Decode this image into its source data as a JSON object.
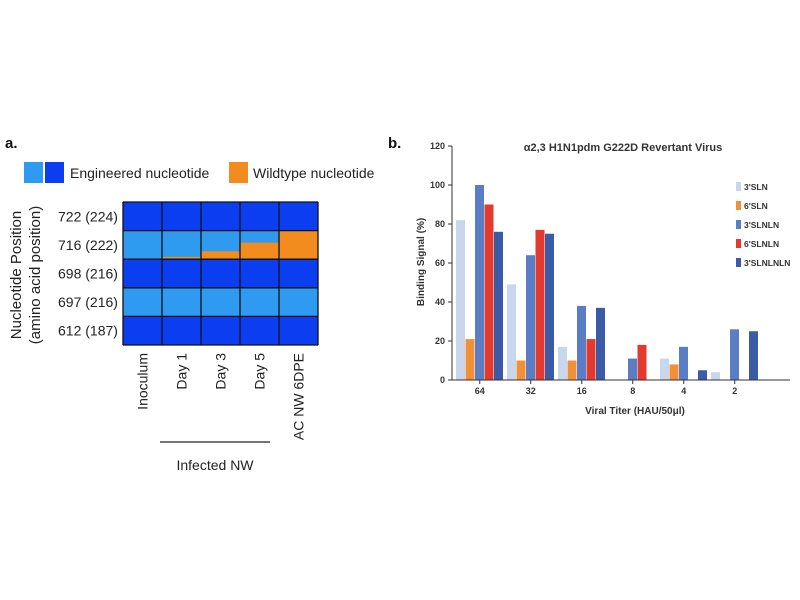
{
  "panel_a": {
    "label": "a.",
    "legend": {
      "engineered_label": "Engineered nucleotide",
      "wildtype_label": "Wildtype nucleotide"
    },
    "y_title_line1": "Nucleotide Position",
    "y_title_line2": "(amino acid position)",
    "group_label": "Infected NW"
  },
  "panel_b": {
    "label": "b."
  },
  "colors": {
    "engineered_dark": "#0a3ef0",
    "engineered_light": "#2e9af0",
    "wildtype": "#f28c1e",
    "s1": "#c9d7ec",
    "s2": "#f0913a",
    "s3": "#5a7ec6",
    "s4": "#e23a2e",
    "s5": "#3c5ba6"
  },
  "chart_data": [
    {
      "type": "heatmap",
      "title": "",
      "rows": [
        "722 (224)",
        "716 (222)",
        "698 (216)",
        "697 (216)",
        "612 (187)"
      ],
      "columns": [
        "Inoculum",
        "Day 1",
        "Day 3",
        "Day 5",
        "AC NW 6DPE"
      ],
      "ylabel": "Nucleotide Position (amino acid position)",
      "column_group": {
        "label": "Infected NW",
        "columns": [
          "Day 1",
          "Day 3",
          "Day 5"
        ]
      },
      "legend": [
        "Engineered nucleotide",
        "Wildtype nucleotide"
      ],
      "wildtype_fraction": [
        [
          0,
          0,
          0,
          0,
          0
        ],
        [
          0,
          0.08,
          0.28,
          0.58,
          1.0
        ],
        [
          0,
          0,
          0,
          0,
          0
        ],
        [
          0,
          0,
          0,
          0,
          0
        ],
        [
          0,
          0,
          0,
          0,
          0
        ]
      ]
    },
    {
      "type": "bar",
      "title": "α2,3 H1N1pdm G222D Revertant Virus",
      "xlabel": "Viral Titer  (HAU/50μl)",
      "ylabel": "Binding Signal (%)",
      "ylim": [
        0,
        120
      ],
      "yticks": [
        0,
        20,
        40,
        60,
        80,
        100,
        120
      ],
      "categories": [
        "64",
        "32",
        "16",
        "8",
        "4",
        "2"
      ],
      "legend_position": "right",
      "series": [
        {
          "name": "3'SLN",
          "values": [
            82,
            49,
            17,
            0,
            11,
            4
          ]
        },
        {
          "name": "6'SLN",
          "values": [
            21,
            10,
            10,
            0,
            8,
            0
          ]
        },
        {
          "name": "3'SLNLN",
          "values": [
            100,
            64,
            38,
            11,
            17,
            26
          ]
        },
        {
          "name": "6'SLNLN",
          "values": [
            90,
            77,
            21,
            18,
            0,
            0
          ]
        },
        {
          "name": "3'SLNLNLN",
          "values": [
            76,
            75,
            37,
            0,
            5,
            25
          ]
        }
      ]
    }
  ]
}
